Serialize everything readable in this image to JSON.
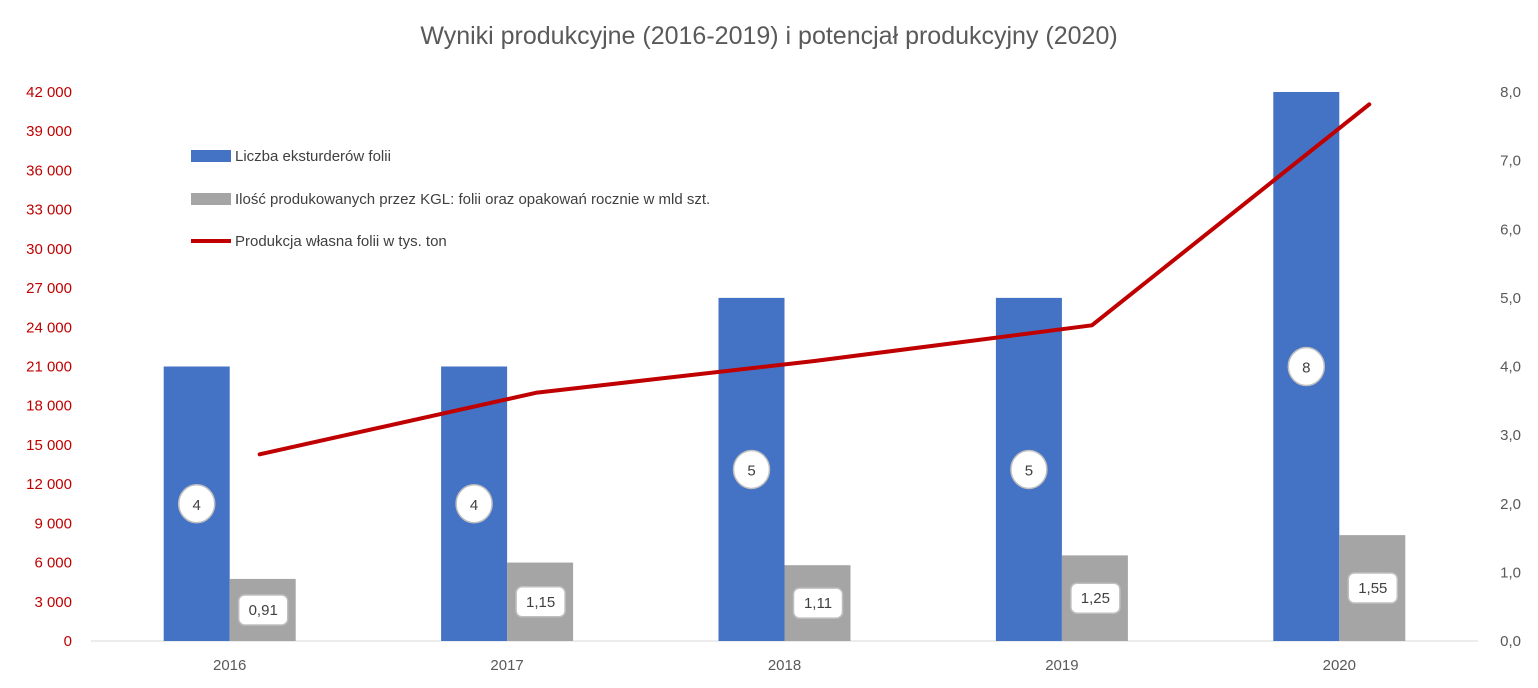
{
  "chart_data": {
    "type": "bar",
    "title": "Wyniki produkcyjne (2016-2019) i potencjał produkcyjny (2020)",
    "categories": [
      "2016",
      "2017",
      "2018",
      "2019",
      "2020"
    ],
    "y_left": {
      "ylim": [
        0,
        42000
      ],
      "ticks": [
        0,
        3000,
        6000,
        9000,
        12000,
        15000,
        18000,
        21000,
        24000,
        27000,
        30000,
        33000,
        36000,
        39000,
        42000
      ],
      "tick_labels": [
        "0",
        "3 000",
        "6 000",
        "9 000",
        "12 000",
        "15 000",
        "18 000",
        "21 000",
        "24 000",
        "27 000",
        "30 000",
        "33 000",
        "36 000",
        "39 000",
        "42 000"
      ],
      "color": "#c00000"
    },
    "y_right": {
      "ylim": [
        0,
        8
      ],
      "ticks": [
        0,
        1,
        2,
        3,
        4,
        5,
        6,
        7,
        8
      ],
      "tick_labels": [
        "0,0",
        "1,0",
        "2,0",
        "3,0",
        "4,0",
        "5,0",
        "6,0",
        "7,0",
        "8,0"
      ]
    },
    "series": [
      {
        "name": "Liczba eksturderów folii",
        "kind": "bar",
        "axis": "left",
        "color": "#4472c4",
        "values": [
          21000,
          21000,
          26250,
          26250,
          42000
        ],
        "labels": [
          "4",
          "4",
          "5",
          "5",
          "8"
        ]
      },
      {
        "name": "Ilość produkowanych przez KGL: folii oraz opakowań rocznie w mld szt.",
        "kind": "bar",
        "axis": "left",
        "color": "#a5a5a5",
        "values": [
          4750,
          6000,
          5800,
          6550,
          8100
        ],
        "labels": [
          "0,91",
          "1,15",
          "1,11",
          "1,25",
          "1,55"
        ]
      },
      {
        "name": "Produkcja własna folii w tys. ton",
        "kind": "line",
        "axis": "right",
        "color": "#c00000",
        "values": [
          2.72,
          3.62,
          4.08,
          4.6,
          7.82
        ]
      }
    ],
    "legend": "top-left"
  }
}
